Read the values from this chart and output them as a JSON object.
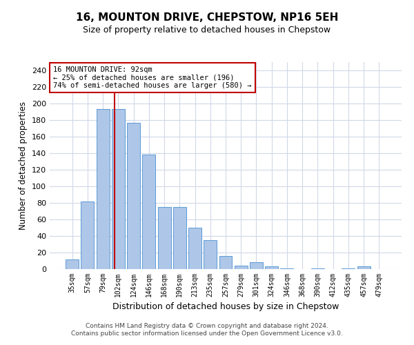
{
  "title": "16, MOUNTON DRIVE, CHEPSTOW, NP16 5EH",
  "subtitle": "Size of property relative to detached houses in Chepstow",
  "xlabel": "Distribution of detached houses by size in Chepstow",
  "ylabel": "Number of detached properties",
  "bar_labels": [
    "35sqm",
    "57sqm",
    "79sqm",
    "102sqm",
    "124sqm",
    "146sqm",
    "168sqm",
    "190sqm",
    "213sqm",
    "235sqm",
    "257sqm",
    "279sqm",
    "301sqm",
    "324sqm",
    "346sqm",
    "368sqm",
    "390sqm",
    "412sqm",
    "435sqm",
    "457sqm",
    "479sqm"
  ],
  "bar_values": [
    12,
    82,
    193,
    193,
    177,
    138,
    75,
    75,
    50,
    35,
    16,
    4,
    8,
    3,
    1,
    0,
    1,
    0,
    1,
    3,
    0
  ],
  "bar_color": "#aec6e8",
  "bar_edge_color": "#5b9bd5",
  "ylim": [
    0,
    250
  ],
  "yticks": [
    0,
    20,
    40,
    60,
    80,
    100,
    120,
    140,
    160,
    180,
    200,
    220,
    240
  ],
  "vline_x_index": 2.77,
  "vline_color": "#c00000",
  "annotation_box_color": "#c00000",
  "annotation_line1": "16 MOUNTON DRIVE: 92sqm",
  "annotation_line2": "← 25% of detached houses are smaller (196)",
  "annotation_line3": "74% of semi-detached houses are larger (580) →",
  "grid_color": "#d0d8e8",
  "footer_line1": "Contains HM Land Registry data © Crown copyright and database right 2024.",
  "footer_line2": "Contains public sector information licensed under the Open Government Licence v3.0."
}
